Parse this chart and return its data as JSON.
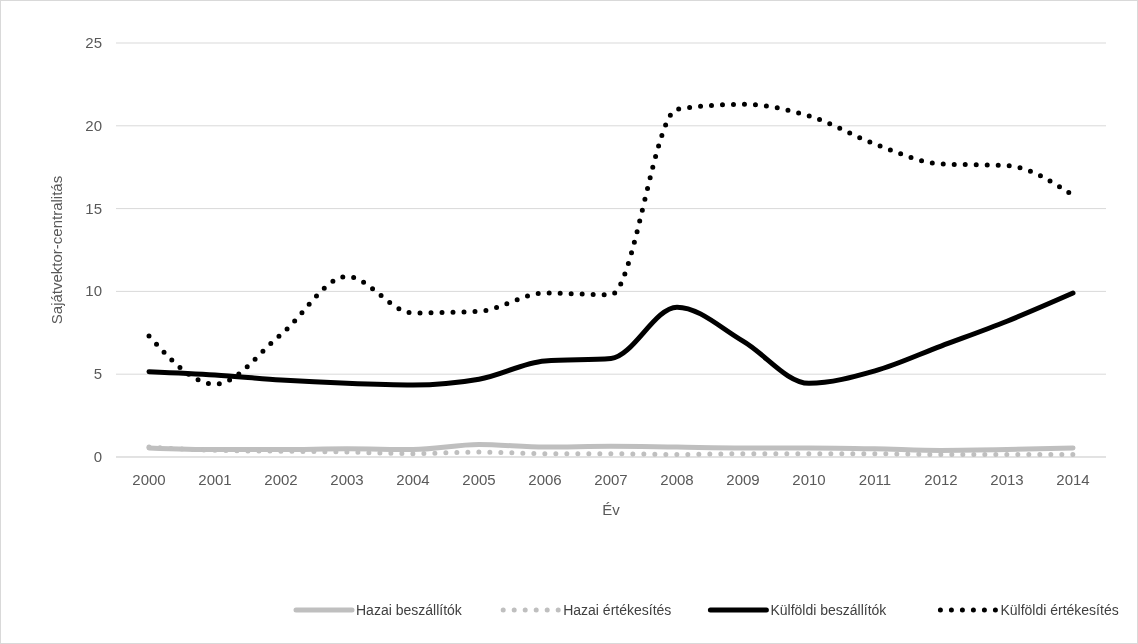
{
  "chart_data": {
    "type": "line",
    "xlabel": "Év",
    "ylabel": "Sajátvektor-centralitás",
    "categories": [
      "2000",
      "2001",
      "2002",
      "2003",
      "2004",
      "2005",
      "2006",
      "2007",
      "2008",
      "2009",
      "2010",
      "2011",
      "2012",
      "2013",
      "2014"
    ],
    "ylim": [
      0,
      25
    ],
    "yticks": [
      0,
      5,
      10,
      15,
      20,
      25
    ],
    "grid": "y",
    "legend": "bottom",
    "series": [
      {
        "name": "Hazai beszállítók",
        "color": "#bfbfbf",
        "line_style": "solid",
        "values": [
          0.55,
          0.45,
          0.45,
          0.5,
          0.45,
          0.75,
          0.6,
          0.65,
          0.6,
          0.55,
          0.55,
          0.5,
          0.4,
          0.45,
          0.55
        ]
      },
      {
        "name": "Hazai értékesítés",
        "color": "#bfbfbf",
        "line_style": "dotted",
        "values": [
          0.6,
          0.4,
          0.35,
          0.3,
          0.2,
          0.3,
          0.2,
          0.2,
          0.15,
          0.2,
          0.2,
          0.2,
          0.15,
          0.15,
          0.15
        ]
      },
      {
        "name": "Külföldi beszállítók",
        "color": "#000000",
        "line_style": "solid",
        "values": [
          5.15,
          4.95,
          4.65,
          4.45,
          4.35,
          4.7,
          5.8,
          5.95,
          9.05,
          7.0,
          4.45,
          5.2,
          6.7,
          8.2,
          9.9
        ]
      },
      {
        "name": "Külföldi értékesítés",
        "color": "#000000",
        "line_style": "dotted",
        "values": [
          7.3,
          4.4,
          7.4,
          10.9,
          8.7,
          8.8,
          9.9,
          9.8,
          21.0,
          21.3,
          20.6,
          18.9,
          17.7,
          17.6,
          15.8
        ]
      }
    ]
  }
}
